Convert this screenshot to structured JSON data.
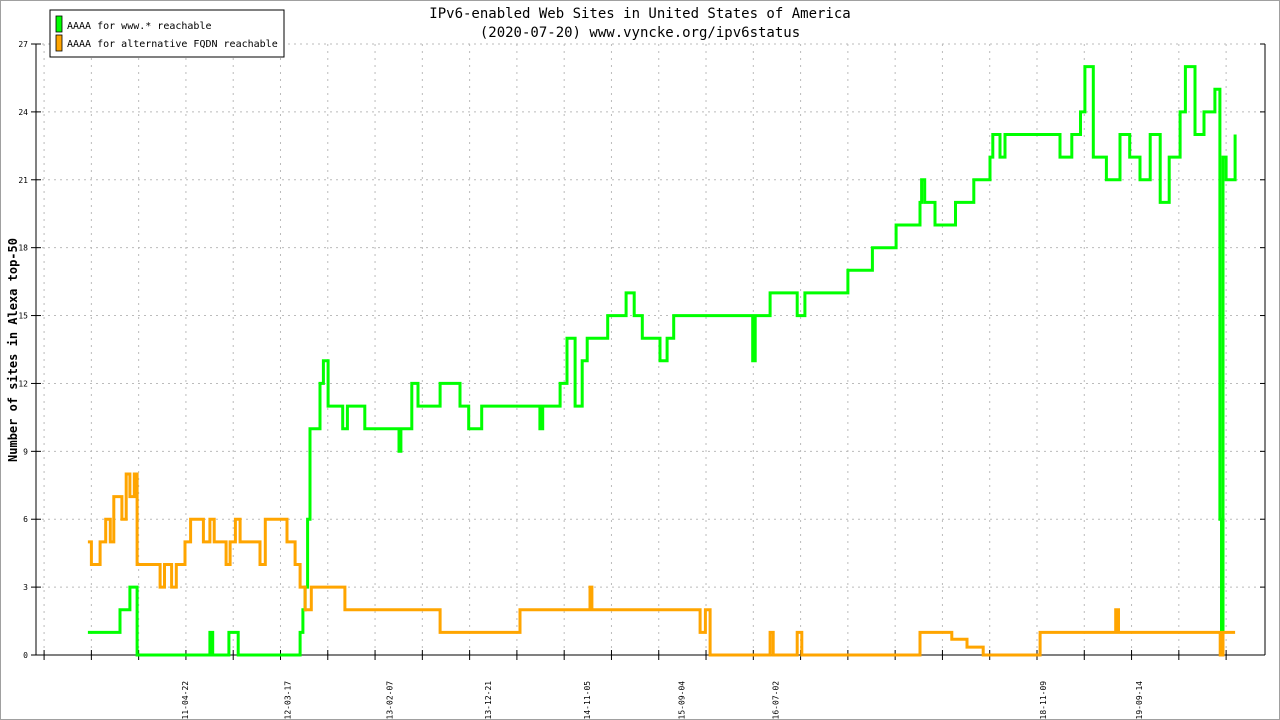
{
  "chart_data": {
    "type": "line",
    "title": "IPv6-enabled Web Sites in United States of America",
    "subtitle": "(2020-07-20) www.vyncke.org/ipv6status",
    "xlabel": "",
    "ylabel": "Number of sites in Alexa top-50",
    "xlim": [
      "2009-12-29",
      "2020-10-23"
    ],
    "ylim": [
      0,
      27
    ],
    "yticks": [
      0,
      3,
      6,
      9,
      12,
      15,
      18,
      21,
      24,
      27
    ],
    "xtick_labels": [
      "2011-04-22",
      "2012-03-17",
      "2013-02-07",
      "2013-12-21",
      "2014-11-05",
      "2015-09-04",
      "2016-07-02",
      "2018-11-09",
      "2019-09-14"
    ],
    "grid": true,
    "legend_position": "top-left",
    "series": [
      {
        "name": "AAAA for www.* reachable",
        "color": "#00ff00",
        "points": [
          [
            "2010-06-14",
            1
          ],
          [
            "2010-09-25",
            2
          ],
          [
            "2010-10-27",
            3
          ],
          [
            "2010-11-19",
            0
          ],
          [
            "2011-07-11",
            1
          ],
          [
            "2011-07-20",
            0
          ],
          [
            "2011-09-10",
            1
          ],
          [
            "2011-10-10",
            0
          ],
          [
            "2012-04-26",
            1
          ],
          [
            "2012-05-05",
            2
          ],
          [
            "2012-05-12",
            3
          ],
          [
            "2012-05-20",
            6
          ],
          [
            "2012-05-28",
            10
          ],
          [
            "2012-06-29",
            12
          ],
          [
            "2012-07-10",
            13
          ],
          [
            "2012-07-25",
            11
          ],
          [
            "2012-09-10",
            10
          ],
          [
            "2012-09-25",
            11
          ],
          [
            "2012-11-20",
            10
          ],
          [
            "2013-03-10",
            9
          ],
          [
            "2013-03-16",
            10
          ],
          [
            "2013-04-20",
            12
          ],
          [
            "2013-05-10",
            11
          ],
          [
            "2013-07-20",
            12
          ],
          [
            "2013-09-22",
            11
          ],
          [
            "2013-10-20",
            10
          ],
          [
            "2013-12-01",
            11
          ],
          [
            "2014-06-06",
            10
          ],
          [
            "2014-06-15",
            11
          ],
          [
            "2014-08-10",
            12
          ],
          [
            "2014-09-01",
            14
          ],
          [
            "2014-09-27",
            11
          ],
          [
            "2014-10-20",
            13
          ],
          [
            "2014-11-05",
            14
          ],
          [
            "2015-01-10",
            15
          ],
          [
            "2015-03-10",
            16
          ],
          [
            "2015-04-05",
            15
          ],
          [
            "2015-05-01",
            14
          ],
          [
            "2015-06-27",
            13
          ],
          [
            "2015-07-20",
            14
          ],
          [
            "2015-08-10",
            15
          ],
          [
            "2016-04-20",
            13
          ],
          [
            "2016-04-28",
            15
          ],
          [
            "2016-06-15",
            16
          ],
          [
            "2016-09-10",
            15
          ],
          [
            "2016-10-05",
            16
          ],
          [
            "2017-02-20",
            17
          ],
          [
            "2017-05-10",
            18
          ],
          [
            "2017-07-25",
            19
          ],
          [
            "2017-10-10",
            20
          ],
          [
            "2017-10-15",
            21
          ],
          [
            "2017-10-25",
            20
          ],
          [
            "2017-11-27",
            19
          ],
          [
            "2018-02-01",
            20
          ],
          [
            "2018-04-01",
            21
          ],
          [
            "2018-05-23",
            22
          ],
          [
            "2018-06-01",
            23
          ],
          [
            "2018-06-24",
            22
          ],
          [
            "2018-07-10",
            23
          ],
          [
            "2018-12-01",
            23
          ],
          [
            "2019-01-03",
            22
          ],
          [
            "2019-02-10",
            23
          ],
          [
            "2019-03-10",
            24
          ],
          [
            "2019-03-24",
            26
          ],
          [
            "2019-04-20",
            22
          ],
          [
            "2019-06-01",
            21
          ],
          [
            "2019-07-15",
            23
          ],
          [
            "2019-08-15",
            22
          ],
          [
            "2019-09-17",
            21
          ],
          [
            "2019-10-20",
            23
          ],
          [
            "2019-11-21",
            20
          ],
          [
            "2019-12-20",
            22
          ],
          [
            "2020-01-24",
            24
          ],
          [
            "2020-02-10",
            26
          ],
          [
            "2020-03-12",
            23
          ],
          [
            "2020-04-10",
            24
          ],
          [
            "2020-05-15",
            25
          ],
          [
            "2020-05-31",
            6
          ],
          [
            "2020-06-05",
            0
          ],
          [
            "2020-06-10",
            22
          ],
          [
            "2020-06-20",
            21
          ],
          [
            "2020-07-19",
            23
          ]
        ]
      },
      {
        "name": "AAAA for alternative FQDN reachable",
        "color": "#ffa500",
        "points": [
          [
            "2010-06-14",
            5
          ],
          [
            "2010-06-25",
            4
          ],
          [
            "2010-07-23",
            5
          ],
          [
            "2010-08-10",
            6
          ],
          [
            "2010-08-25",
            5
          ],
          [
            "2010-09-05",
            7
          ],
          [
            "2010-10-01",
            6
          ],
          [
            "2010-10-15",
            8
          ],
          [
            "2010-10-27",
            7
          ],
          [
            "2010-11-10",
            8
          ],
          [
            "2010-11-19",
            4
          ],
          [
            "2011-02-01",
            3
          ],
          [
            "2011-02-15",
            4
          ],
          [
            "2011-03-10",
            3
          ],
          [
            "2011-03-25",
            4
          ],
          [
            "2011-04-22",
            5
          ],
          [
            "2011-05-10",
            6
          ],
          [
            "2011-06-20",
            5
          ],
          [
            "2011-07-11",
            6
          ],
          [
            "2011-07-25",
            5
          ],
          [
            "2011-09-01",
            4
          ],
          [
            "2011-09-14",
            5
          ],
          [
            "2011-10-01",
            6
          ],
          [
            "2011-10-16",
            5
          ],
          [
            "2011-12-19",
            4
          ],
          [
            "2012-01-05",
            6
          ],
          [
            "2012-02-21",
            6
          ],
          [
            "2012-03-15",
            5
          ],
          [
            "2012-04-10",
            4
          ],
          [
            "2012-04-26",
            3
          ],
          [
            "2012-05-12",
            2
          ],
          [
            "2012-06-01",
            3
          ],
          [
            "2012-09-17",
            2
          ],
          [
            "2013-07-20",
            1
          ],
          [
            "2014-04-03",
            2
          ],
          [
            "2014-11-14",
            3
          ],
          [
            "2014-11-20",
            2
          ],
          [
            "2015-11-03",
            1
          ],
          [
            "2015-11-20",
            2
          ],
          [
            "2015-12-05",
            0
          ],
          [
            "2016-06-15",
            1
          ],
          [
            "2016-06-25",
            0
          ],
          [
            "2016-09-10",
            1
          ],
          [
            "2016-09-25",
            0
          ],
          [
            "2017-10-10",
            1
          ],
          [
            "2017-11-27",
            1
          ],
          [
            "2018-01-20",
            0.7
          ],
          [
            "2018-03-10",
            0.35
          ],
          [
            "2018-05-01",
            0
          ],
          [
            "2018-10-31",
            1
          ],
          [
            "2019-07-01",
            2
          ],
          [
            "2019-07-10",
            1
          ],
          [
            "2020-06-01",
            0
          ],
          [
            "2020-06-10",
            1
          ],
          [
            "2020-07-19",
            1
          ]
        ]
      }
    ]
  }
}
